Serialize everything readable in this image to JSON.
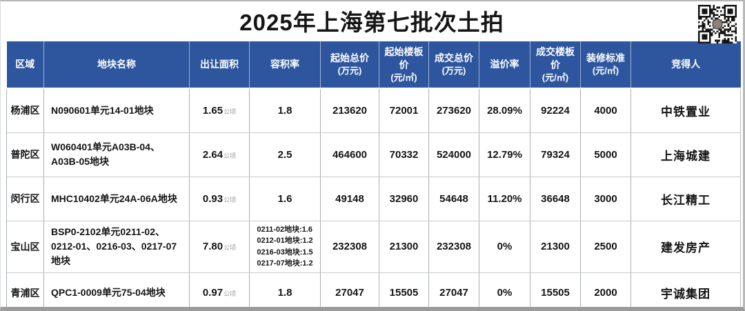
{
  "page": {
    "title": "2025年上海第七批次土拍"
  },
  "colors": {
    "header_bg": "#2d569e",
    "title_color": "#151515"
  },
  "qr_label": "qr-code",
  "table": {
    "columns": [
      {
        "label": "区域",
        "sub": ""
      },
      {
        "label": "地块名称",
        "sub": ""
      },
      {
        "label": "出让面积",
        "sub": ""
      },
      {
        "label": "容积率",
        "sub": ""
      },
      {
        "label": "起始总价",
        "sub": "(万元)"
      },
      {
        "label": "起始楼板价",
        "sub": "(元/㎡)"
      },
      {
        "label": "成交总价",
        "sub": "(万元)"
      },
      {
        "label": "溢价率",
        "sub": ""
      },
      {
        "label": "成交楼板价",
        "sub": "(元/㎡)"
      },
      {
        "label": "装修标准",
        "sub": "(元/㎡)"
      },
      {
        "label": "竞得人",
        "sub": ""
      }
    ],
    "area_unit": "公顷",
    "rows": [
      {
        "region": "杨浦区",
        "plot": "N090601单元14-01地块",
        "area": "1.65",
        "ratio": "1.8",
        "start_total": "213620",
        "start_floor": "72001",
        "deal_total": "273620",
        "premium": "28.09%",
        "deal_floor": "92224",
        "decoration": "4000",
        "winner": "中铁置业"
      },
      {
        "region": "普陀区",
        "plot": "W060401单元A03B-04、A03B-05地块",
        "area": "2.64",
        "ratio": "2.5",
        "start_total": "464600",
        "start_floor": "70332",
        "deal_total": "524000",
        "premium": "12.79%",
        "deal_floor": "79324",
        "decoration": "5000",
        "winner": "上海城建"
      },
      {
        "region": "闵行区",
        "plot": "MHC10402单元24A-06A地块",
        "area": "0.93",
        "ratio": "1.6",
        "start_total": "49148",
        "start_floor": "32960",
        "deal_total": "54648",
        "premium": "11.20%",
        "deal_floor": "36648",
        "decoration": "3000",
        "winner": "长江精工"
      },
      {
        "region": "宝山区",
        "plot": "BSP0-2102单元0211-02、0212-01、0216-03、0217-07地块",
        "area": "7.80",
        "ratio_multi": [
          "0211-02地块:1.6",
          "0212-01地块:1.2",
          "0216-03地块:1.5",
          "0217-07地块:1.2"
        ],
        "start_total": "232308",
        "start_floor": "21300",
        "deal_total": "232308",
        "premium": "0%",
        "deal_floor": "21300",
        "decoration": "2500",
        "winner": "建发房产"
      },
      {
        "region": "青浦区",
        "plot": "QPC1-0009单元75-04地块",
        "area": "0.97",
        "ratio": "1.8",
        "start_total": "27047",
        "start_floor": "15505",
        "deal_total": "27047",
        "premium": "0%",
        "deal_floor": "15505",
        "decoration": "2000",
        "winner": "宇诚集团"
      }
    ]
  }
}
